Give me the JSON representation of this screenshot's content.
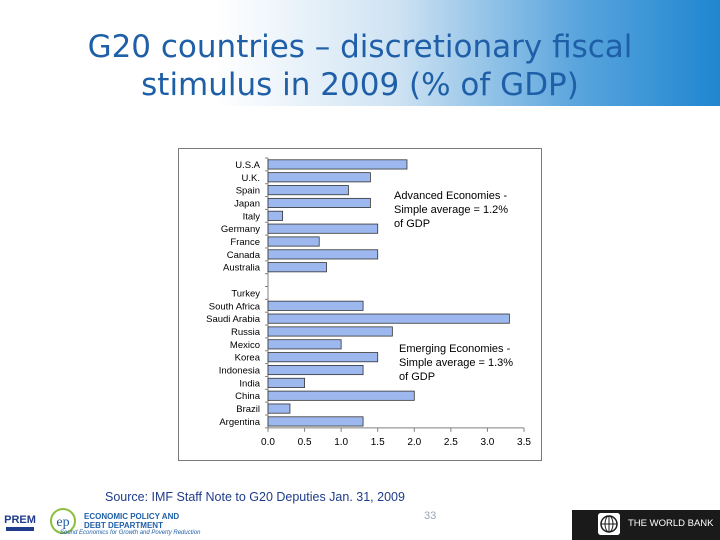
{
  "slide": {
    "title_line1": "G20 countries – discretionary fiscal",
    "title_line2": "stimulus in 2009 (% of GDP)",
    "source": "Source:  IMF Staff Note to G20 Deputies Jan. 31, 2009",
    "page_number": "33"
  },
  "footer": {
    "prem_logo": "PREM",
    "epdd_line1": "ECONOMIC POLICY AND",
    "epdd_line2": "DEBT DEPARTMENT",
    "epdd_tagline": "Sound Economics for Growth and Poverty Reduction",
    "world_bank": "THE WORLD BANK"
  },
  "colors": {
    "bar_fill": "#9db8ee",
    "bar_stroke": "#333333",
    "title": "#1f5fa8",
    "source_text": "#1f3c8c"
  },
  "chart_data": {
    "type": "bar",
    "orientation": "horizontal",
    "categories": [
      "U.S.A",
      "U.K.",
      "Spain",
      "Japan",
      "Italy",
      "Germany",
      "France",
      "Canada",
      "Australia",
      "",
      "Turkey",
      "South Africa",
      "Saudi Arabia",
      "Russia",
      "Mexico",
      "Korea",
      "Indonesia",
      "India",
      "China",
      "Brazil",
      "Argentina"
    ],
    "values": [
      1.9,
      1.4,
      1.1,
      1.4,
      0.2,
      1.5,
      0.7,
      1.5,
      0.8,
      null,
      0.0,
      1.3,
      3.3,
      1.7,
      1.0,
      1.5,
      1.3,
      0.5,
      2.0,
      0.3,
      1.3
    ],
    "xlim": [
      0,
      3.5
    ],
    "xticks": [
      "0.0",
      "0.5",
      "1.0",
      "1.5",
      "2.0",
      "2.5",
      "3.0",
      "3.5"
    ],
    "grid": false,
    "legend": "none",
    "annotations": [
      {
        "lines": [
          "Advanced Economies -",
          "Simple average = 1.2%",
          "of GDP"
        ]
      },
      {
        "lines": [
          "Emerging Economies -",
          "Simple average = 1.3%",
          "of GDP"
        ]
      }
    ]
  }
}
